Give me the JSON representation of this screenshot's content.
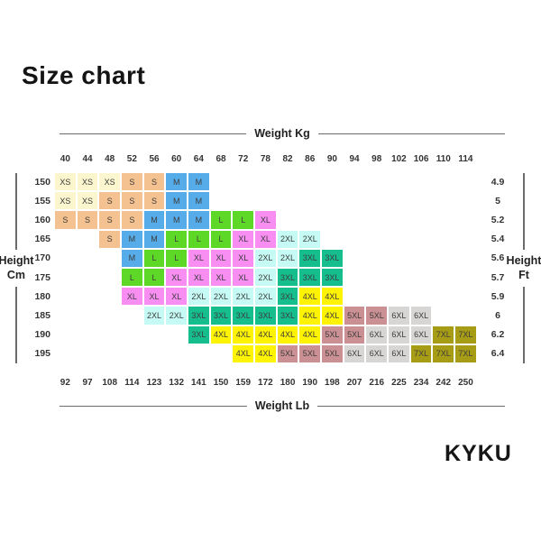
{
  "title": "Size chart",
  "brand": "KYKU",
  "axes": {
    "top_label": "Weight Kg",
    "bottom_label": "Weight Lb",
    "left_label_line1": "Height",
    "left_label_line2": "Cm",
    "right_label_line1": "Height",
    "right_label_line2": "Ft"
  },
  "chart_data": {
    "type": "heatmap",
    "title": "Size chart",
    "x_axis_top_label": "Weight Kg",
    "x_axis_bottom_label": "Weight Lb",
    "y_axis_left_label": "Height Cm",
    "y_axis_right_label": "Height Ft",
    "weight_kg": [
      "40",
      "44",
      "48",
      "52",
      "56",
      "60",
      "64",
      "68",
      "72",
      "78",
      "82",
      "86",
      "90",
      "94",
      "98",
      "102",
      "106",
      "110",
      "114"
    ],
    "weight_lb": [
      "92",
      "97",
      "108",
      "114",
      "123",
      "132",
      "141",
      "150",
      "159",
      "172",
      "180",
      "190",
      "198",
      "207",
      "216",
      "225",
      "234",
      "242",
      "250"
    ],
    "height_cm": [
      "150",
      "155",
      "160",
      "165",
      "170",
      "175",
      "180",
      "185",
      "190",
      "195"
    ],
    "height_ft": [
      "4.9",
      "5",
      "5.2",
      "5.4",
      "5.6",
      "5.7",
      "5.9",
      "6",
      "6.2",
      "6.4"
    ],
    "size_colors": {
      "XS": "#FBF6CE",
      "S": "#F4C291",
      "M": "#55ACE8",
      "L": "#5DD827",
      "XL": "#F88EF2",
      "2XL": "#C5FBF4",
      "3XL": "#16BE8E",
      "4XL": "#FDF303",
      "5XL": "#CB9093",
      "6XL": "#D8D6D4",
      "7XL": "#A79C15"
    },
    "grid": [
      [
        "XS",
        "XS",
        "XS",
        "S",
        "S",
        "M",
        "M",
        "",
        "",
        "",
        "",
        "",
        "",
        "",
        "",
        "",
        "",
        "",
        ""
      ],
      [
        "XS",
        "XS",
        "S",
        "S",
        "S",
        "M",
        "M",
        "",
        "",
        "",
        "",
        "",
        "",
        "",
        "",
        "",
        "",
        "",
        ""
      ],
      [
        "S",
        "S",
        "S",
        "S",
        "M",
        "M",
        "M",
        "L",
        "L",
        "XL",
        "",
        "",
        "",
        "",
        "",
        "",
        "",
        "",
        ""
      ],
      [
        "",
        "",
        "S",
        "M",
        "M",
        "L",
        "L",
        "L",
        "XL",
        "XL",
        "2XL",
        "2XL",
        "",
        "",
        "",
        "",
        "",
        "",
        ""
      ],
      [
        "",
        "",
        "",
        "M",
        "L",
        "L",
        "XL",
        "XL",
        "XL",
        "2XL",
        "2XL",
        "3XL",
        "3XL",
        "",
        "",
        "",
        "",
        "",
        ""
      ],
      [
        "",
        "",
        "",
        "L",
        "L",
        "XL",
        "XL",
        "XL",
        "XL",
        "2XL",
        "3XL",
        "3XL",
        "3XL",
        "",
        "",
        "",
        "",
        "",
        ""
      ],
      [
        "",
        "",
        "",
        "XL",
        "XL",
        "XL",
        "2XL",
        "2XL",
        "2XL",
        "2XL",
        "3XL",
        "4XL",
        "4XL",
        "",
        "",
        "",
        "",
        "",
        ""
      ],
      [
        "",
        "",
        "",
        "",
        "2XL",
        "2XL",
        "3XL",
        "3XL",
        "3XL",
        "3XL",
        "3XL",
        "4XL",
        "4XL",
        "5XL",
        "5XL",
        "6XL",
        "6XL",
        "",
        ""
      ],
      [
        "",
        "",
        "",
        "",
        "",
        "",
        "3XL",
        "4XL",
        "4XL",
        "4XL",
        "4XL",
        "4XL",
        "5XL",
        "5XL",
        "6XL",
        "6XL",
        "6XL",
        "7XL",
        "7XL"
      ],
      [
        "",
        "",
        "",
        "",
        "",
        "",
        "",
        "",
        "4XL",
        "4XL",
        "5XL",
        "5XL",
        "5XL",
        "6XL",
        "6XL",
        "6XL",
        "7XL",
        "7XL",
        "7XL"
      ]
    ]
  }
}
